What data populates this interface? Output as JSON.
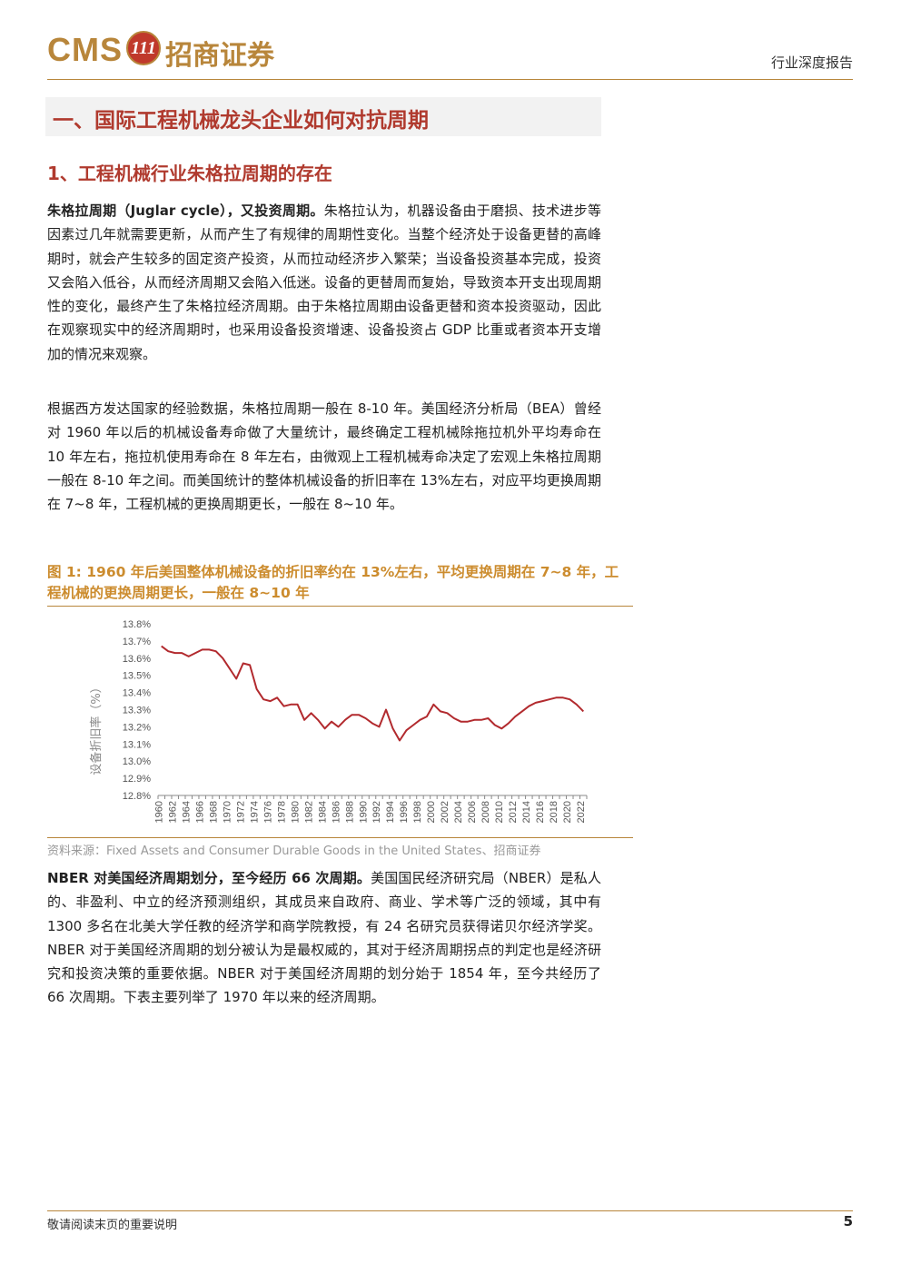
{
  "header": {
    "logo_latin": "CMS",
    "logo_badge": "111",
    "logo_cn": "招商证券",
    "report_type": "行业深度报告"
  },
  "section": {
    "title": "一、国际工程机械龙头企业如何对抗周期",
    "subtitle": "1、工程机械行业朱格拉周期的存在"
  },
  "paragraphs": {
    "p1_bold": "朱格拉周期（Juglar cycle），又投资周期。",
    "p1_text": "朱格拉认为，机器设备由于磨损、技术进步等因素过几年就需要更新，从而产生了有规律的周期性变化。当整个经济处于设备更替的高峰期时，就会产生较多的固定资产投资，从而拉动经济步入繁荣；当设备投资基本完成，投资又会陷入低谷，从而经济周期又会陷入低迷。设备的更替周而复始，导致资本开支出现周期性的变化，最终产生了朱格拉经济周期。由于朱格拉周期由设备更替和资本投资驱动，因此在观察现实中的经济周期时，也采用设备投资增速、设备投资占 GDP 比重或者资本开支增加的情况来观察。",
    "p2_text": "根据西方发达国家的经验数据，朱格拉周期一般在 8-10 年。美国经济分析局（BEA）曾经对 1960 年以后的机械设备寿命做了大量统计，最终确定工程机械除拖拉机外平均寿命在 10 年左右，拖拉机使用寿命在 8 年左右，由微观上工程机械寿命决定了宏观上朱格拉周期一般在 8-10 年之间。而美国统计的整体机械设备的折旧率在 13%左右，对应平均更换周期在 7~8 年，工程机械的更换周期更长，一般在 8~10 年。",
    "p3_bold": "NBER 对美国经济周期划分，至今经历 66 次周期。",
    "p3_text": "美国国民经济研究局（NBER）是私人的、非盈利、中立的经济预测组织，其成员来自政府、商业、学术等广泛的领域，其中有 1300 多名在北美大学任教的经济学和商学院教授，有 24 名研究员获得诺贝尔经济学奖。NBER 对于美国经济周期的划分被认为是最权威的，其对于经济周期拐点的判定也是经济研究和投资决策的重要依据。NBER 对于美国经济周期的划分始于 1854 年，至今共经历了 66 次周期。下表主要列举了 1970 年以来的经济周期。"
  },
  "figure": {
    "title": "图 1: 1960 年后美国整体机械设备的折旧率约在 13%左右，平均更换周期在 7~8 年，工程机械的更换周期更长，一般在 8~10 年",
    "source": "资料来源：Fixed Assets and Consumer Durable Goods in the United States、招商证券"
  },
  "chart_data": {
    "type": "line",
    "ylabel": "设备折旧率（%）",
    "ylim": [
      12.8,
      13.8
    ],
    "yticks": [
      "13.8%",
      "13.7%",
      "13.6%",
      "13.5%",
      "13.4%",
      "13.3%",
      "13.2%",
      "13.1%",
      "13.0%",
      "12.9%",
      "12.8%"
    ],
    "xticks": [
      "1960",
      "1962",
      "1964",
      "1966",
      "1968",
      "1970",
      "1972",
      "1974",
      "1976",
      "1978",
      "1980",
      "1982",
      "1984",
      "1986",
      "1988",
      "1990",
      "1992",
      "1994",
      "1996",
      "1998",
      "2000",
      "2002",
      "2004",
      "2006",
      "2008",
      "2010",
      "2012",
      "2014",
      "2016",
      "2018",
      "2020",
      "2022"
    ],
    "line_color": "#b22a2e",
    "series": [
      {
        "x": [
          1960,
          1961,
          1962,
          1963,
          1964,
          1965,
          1966,
          1967,
          1968,
          1969,
          1970,
          1971,
          1972,
          1973,
          1974,
          1975,
          1976,
          1977,
          1978,
          1979,
          1980,
          1981,
          1982,
          1983,
          1984,
          1985,
          1986,
          1987,
          1988,
          1989,
          1990,
          1991,
          1992,
          1993,
          1994,
          1995,
          1996,
          1997,
          1998,
          1999,
          2000,
          2001,
          2002,
          2003,
          2004,
          2005,
          2006,
          2007,
          2008,
          2009,
          2010,
          2011,
          2012,
          2013,
          2014,
          2015,
          2016,
          2017,
          2018,
          2019,
          2020,
          2021,
          2022
        ],
        "values": [
          13.67,
          13.64,
          13.63,
          13.63,
          13.61,
          13.63,
          13.65,
          13.65,
          13.64,
          13.6,
          13.54,
          13.48,
          13.57,
          13.56,
          13.42,
          13.36,
          13.35,
          13.37,
          13.32,
          13.33,
          13.33,
          13.24,
          13.28,
          13.24,
          13.19,
          13.23,
          13.2,
          13.24,
          13.27,
          13.27,
          13.25,
          13.22,
          13.2,
          13.3,
          13.19,
          13.12,
          13.18,
          13.21,
          13.24,
          13.26,
          13.33,
          13.29,
          13.28,
          13.25,
          13.23,
          13.23,
          13.24,
          13.24,
          13.25,
          13.21,
          13.19,
          13.22,
          13.26,
          13.29,
          13.32,
          13.34,
          13.35,
          13.36,
          13.37,
          13.37,
          13.36,
          13.33,
          13.29
        ]
      }
    ]
  },
  "footer": {
    "note": "敬请阅读末页的重要说明",
    "page": "5"
  }
}
